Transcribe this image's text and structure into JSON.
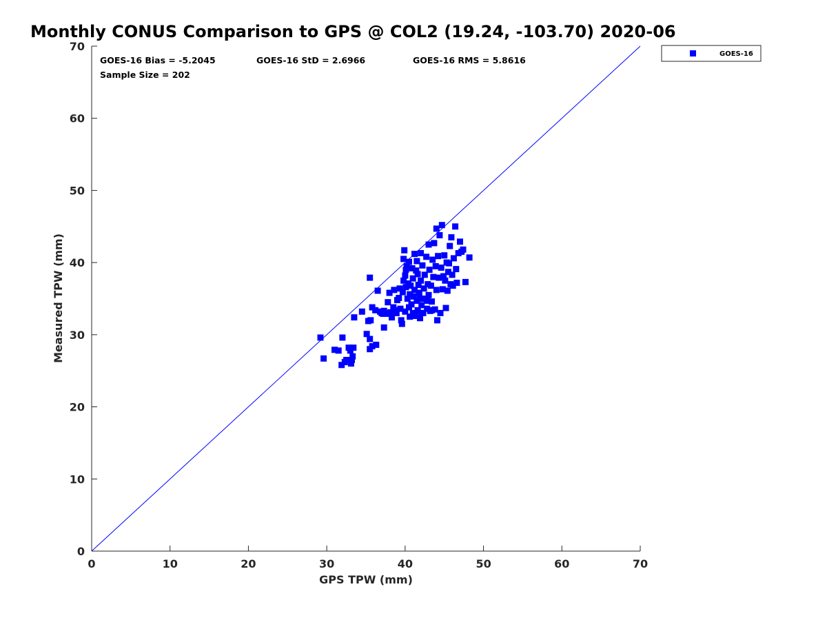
{
  "chart_data": {
    "type": "scatter",
    "title": "Monthly CONUS Comparison to GPS @ COL2 (19.24, -103.70) 2020-06",
    "xlabel": "GPS TPW (mm)",
    "ylabel": "Measured TPW (mm)",
    "xlim": [
      0,
      70
    ],
    "ylim": [
      0,
      70
    ],
    "xticks": [
      "0",
      "10",
      "20",
      "30",
      "40",
      "50",
      "60",
      "70"
    ],
    "yticks": [
      "0",
      "10",
      "20",
      "30",
      "40",
      "50",
      "60",
      "70"
    ],
    "grid": false,
    "legend": {
      "placement": "outside top-right",
      "entries": [
        "GOES-16"
      ]
    },
    "stats": {
      "bias": "GOES-16 Bias = -5.2045",
      "std": "GOES-16 StD = 2.6966",
      "rms": "GOES-16 RMS = 5.8616",
      "sample": "Sample Size = 202"
    },
    "reference_line": {
      "from": [
        0,
        0
      ],
      "to": [
        70,
        70
      ],
      "color": "#0000ff"
    },
    "series": [
      {
        "name": "GOES-16",
        "color": "#0000ff",
        "marker": "square",
        "points": [
          [
            29.2,
            29.6
          ],
          [
            29.6,
            26.7
          ],
          [
            31.0,
            27.9
          ],
          [
            31.5,
            27.8
          ],
          [
            32.0,
            29.6
          ],
          [
            32.3,
            26.2
          ],
          [
            32.5,
            26.5
          ],
          [
            32.8,
            28.2
          ],
          [
            33.0,
            27.8
          ],
          [
            33.1,
            26.0
          ],
          [
            33.2,
            26.5
          ],
          [
            33.3,
            27.0
          ],
          [
            33.4,
            28.2
          ],
          [
            33.5,
            32.4
          ],
          [
            31.9,
            25.8
          ],
          [
            34.5,
            33.2
          ],
          [
            35.1,
            30.1
          ],
          [
            35.3,
            31.9
          ],
          [
            35.6,
            32.0
          ],
          [
            35.5,
            29.4
          ],
          [
            35.5,
            28.0
          ],
          [
            35.8,
            28.4
          ],
          [
            36.3,
            28.6
          ],
          [
            35.5,
            37.9
          ],
          [
            35.8,
            33.8
          ],
          [
            36.2,
            33.4
          ],
          [
            36.5,
            36.1
          ],
          [
            36.8,
            33.2
          ],
          [
            37.0,
            33.0
          ],
          [
            37.2,
            32.9
          ],
          [
            37.3,
            33.3
          ],
          [
            37.3,
            31.0
          ],
          [
            37.6,
            32.9
          ],
          [
            37.8,
            34.5
          ],
          [
            38.0,
            35.8
          ],
          [
            38.1,
            33.1
          ],
          [
            38.3,
            32.4
          ],
          [
            38.5,
            33.8
          ],
          [
            38.6,
            36.2
          ],
          [
            38.7,
            33.4
          ],
          [
            38.9,
            33.0
          ],
          [
            39.0,
            34.8
          ],
          [
            39.2,
            35.1
          ],
          [
            39.3,
            36.4
          ],
          [
            39.4,
            33.6
          ],
          [
            39.5,
            32.0
          ],
          [
            39.6,
            31.5
          ],
          [
            39.7,
            35.9
          ],
          [
            39.8,
            37.5
          ],
          [
            39.8,
            40.5
          ],
          [
            39.9,
            41.7
          ],
          [
            40.0,
            38.2
          ],
          [
            40.0,
            33.2
          ],
          [
            40.1,
            36.6
          ],
          [
            40.2,
            39.5
          ],
          [
            40.3,
            35.0
          ],
          [
            40.4,
            37.1
          ],
          [
            40.5,
            33.8
          ],
          [
            40.5,
            40.1
          ],
          [
            40.6,
            35.6
          ],
          [
            40.7,
            36.8
          ],
          [
            40.8,
            34.2
          ],
          [
            40.9,
            39.2
          ],
          [
            41.0,
            33.0
          ],
          [
            41.0,
            37.8
          ],
          [
            41.1,
            35.3
          ],
          [
            41.2,
            36.2
          ],
          [
            41.3,
            32.6
          ],
          [
            41.4,
            38.9
          ],
          [
            41.5,
            34.7
          ],
          [
            41.5,
            40.2
          ],
          [
            41.6,
            33.4
          ],
          [
            41.7,
            36.9
          ],
          [
            41.8,
            35.8
          ],
          [
            41.9,
            32.3
          ],
          [
            42.0,
            41.3
          ],
          [
            42.0,
            37.5
          ],
          [
            42.1,
            34.1
          ],
          [
            42.2,
            39.6
          ],
          [
            42.3,
            33.0
          ],
          [
            42.4,
            36.4
          ],
          [
            42.5,
            38.3
          ],
          [
            42.6,
            35.0
          ],
          [
            42.7,
            40.8
          ],
          [
            42.8,
            33.6
          ],
          [
            42.9,
            37.0
          ],
          [
            43.0,
            42.5
          ],
          [
            43.0,
            35.5
          ],
          [
            43.1,
            39.0
          ],
          [
            43.2,
            33.3
          ],
          [
            43.3,
            36.8
          ],
          [
            43.4,
            34.6
          ],
          [
            43.5,
            40.4
          ],
          [
            43.6,
            38.0
          ],
          [
            43.7,
            42.7
          ],
          [
            43.8,
            33.5
          ],
          [
            43.9,
            39.5
          ],
          [
            44.0,
            44.7
          ],
          [
            44.0,
            36.2
          ],
          [
            44.1,
            32.0
          ],
          [
            44.2,
            40.9
          ],
          [
            44.3,
            37.9
          ],
          [
            44.4,
            43.8
          ],
          [
            44.5,
            33.0
          ],
          [
            44.6,
            39.3
          ],
          [
            44.7,
            45.2
          ],
          [
            44.8,
            36.3
          ],
          [
            44.9,
            38.1
          ],
          [
            45.0,
            41.0
          ],
          [
            45.1,
            37.5
          ],
          [
            45.2,
            33.7
          ],
          [
            45.3,
            40.0
          ],
          [
            45.4,
            36.1
          ],
          [
            45.5,
            38.7
          ],
          [
            45.6,
            39.9
          ],
          [
            45.7,
            42.3
          ],
          [
            45.8,
            37.0
          ],
          [
            45.9,
            43.5
          ],
          [
            46.0,
            38.3
          ],
          [
            46.1,
            36.8
          ],
          [
            46.2,
            40.6
          ],
          [
            46.4,
            45.0
          ],
          [
            46.5,
            39.1
          ],
          [
            46.6,
            37.2
          ],
          [
            46.8,
            41.3
          ],
          [
            47.0,
            42.9
          ],
          [
            47.2,
            41.5
          ],
          [
            47.4,
            41.8
          ],
          [
            47.7,
            37.3
          ],
          [
            48.2,
            40.7
          ],
          [
            41.2,
            41.2
          ],
          [
            42.8,
            34.7
          ],
          [
            40.6,
            32.5
          ],
          [
            41.9,
            35.0
          ],
          [
            43.4,
            33.4
          ],
          [
            40.1,
            39.0
          ],
          [
            42.1,
            33.0
          ],
          [
            41.6,
            38.4
          ]
        ]
      }
    ]
  }
}
